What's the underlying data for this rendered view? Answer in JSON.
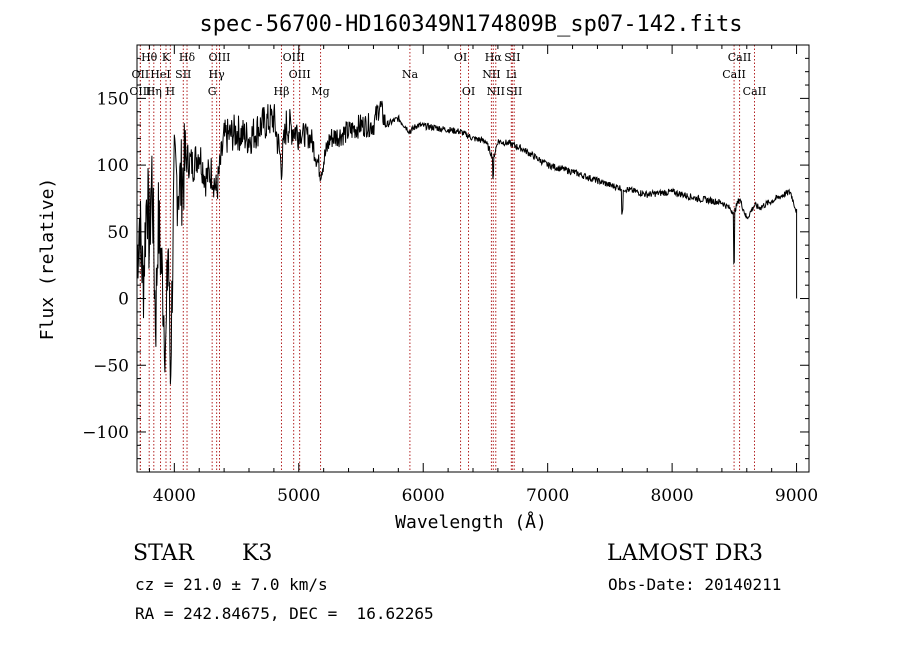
{
  "chart_data": {
    "type": "line",
    "title": "spec-56700-HD160349N174809B_sp07-142.fits",
    "xlabel": "Wavelength (Å)",
    "ylabel": "Flux (relative)",
    "xlim": [
      3700,
      9100
    ],
    "ylim": [
      -130,
      190
    ],
    "xticks": [
      4000,
      5000,
      6000,
      7000,
      8000,
      9000
    ],
    "yticks": [
      -100,
      -50,
      0,
      50,
      100,
      150
    ],
    "spectrum_anchors": {
      "x": [
        3700,
        3720,
        3750,
        3780,
        3800,
        3820,
        3850,
        3870,
        3900,
        3933,
        3950,
        3968,
        4000,
        4050,
        4100,
        4150,
        4200,
        4250,
        4300,
        4340,
        4400,
        4500,
        4600,
        4700,
        4800,
        4861,
        4900,
        5000,
        5100,
        5175,
        5250,
        5400,
        5500,
        5600,
        5650,
        5700,
        5800,
        5893,
        5950,
        6100,
        6300,
        6400,
        6500,
        6563,
        6600,
        6700,
        6800,
        7000,
        7200,
        7500,
        7800,
        8000,
        8200,
        8400,
        8498,
        8542,
        8600,
        8662,
        8700,
        8800,
        8900,
        8950,
        9000
      ],
      "y": [
        30,
        60,
        10,
        85,
        40,
        95,
        -20,
        60,
        20,
        -40,
        50,
        -60,
        90,
        85,
        105,
        100,
        110,
        90,
        95,
        80,
        120,
        125,
        120,
        130,
        135,
        100,
        130,
        125,
        120,
        95,
        120,
        125,
        130,
        130,
        145,
        130,
        135,
        125,
        130,
        128,
        125,
        120,
        118,
        105,
        118,
        116,
        112,
        100,
        95,
        85,
        78,
        80,
        75,
        72,
        65,
        75,
        60,
        70,
        68,
        73,
        78,
        80,
        65
      ]
    },
    "spectral_lines": [
      {
        "label": "Hθ",
        "x": 3798,
        "row": 0
      },
      {
        "label": "OII",
        "x": 3727,
        "row": 1
      },
      {
        "label": "OIII",
        "x": 3727,
        "row": 2
      },
      {
        "label": "Hη",
        "x": 3835,
        "row": 2
      },
      {
        "label": "HeI",
        "x": 3889,
        "row": 1
      },
      {
        "label": "K",
        "x": 3933,
        "row": 0
      },
      {
        "label": "H",
        "x": 3968,
        "row": 2
      },
      {
        "label": "SII",
        "x": 4072,
        "row": 1
      },
      {
        "label": "Hδ",
        "x": 4102,
        "row": 0
      },
      {
        "label": "OIII",
        "x": 4363,
        "row": 0
      },
      {
        "label": "Hγ",
        "x": 4340,
        "row": 1
      },
      {
        "label": "G",
        "x": 4304,
        "row": 2
      },
      {
        "label": "Hβ",
        "x": 4861,
        "row": 2
      },
      {
        "label": "OIII",
        "x": 4959,
        "row": 0
      },
      {
        "label": "OIII",
        "x": 5007,
        "row": 1
      },
      {
        "label": "Mg",
        "x": 5175,
        "row": 2
      },
      {
        "label": "Na",
        "x": 5893,
        "row": 1
      },
      {
        "label": "OI",
        "x": 6300,
        "row": 0
      },
      {
        "label": "OI",
        "x": 6364,
        "row": 2
      },
      {
        "label": "Hα",
        "x": 6563,
        "row": 0
      },
      {
        "label": "NII",
        "x": 6548,
        "row": 1
      },
      {
        "label": "NII",
        "x": 6583,
        "row": 2
      },
      {
        "label": "SII",
        "x": 6716,
        "row": 0
      },
      {
        "label": "Li",
        "x": 6708,
        "row": 1
      },
      {
        "label": "SII",
        "x": 6731,
        "row": 2
      },
      {
        "label": "CaII",
        "x": 8542,
        "row": 0
      },
      {
        "label": "CaII",
        "x": 8498,
        "row": 1
      },
      {
        "label": "CaII",
        "x": 8662,
        "row": 2
      }
    ],
    "colors": {
      "spectrum": "#000000",
      "lines": "#b22222",
      "axes": "#000000"
    }
  },
  "info": {
    "object_class": "STAR",
    "subclass": "K3",
    "survey": "LAMOST DR3",
    "redshift": "cz = 21.0 ± 7.0 km/s",
    "obs_date": "Obs-Date: 20140211",
    "coords": "RA = 242.84675, DEC =  16.62265"
  }
}
